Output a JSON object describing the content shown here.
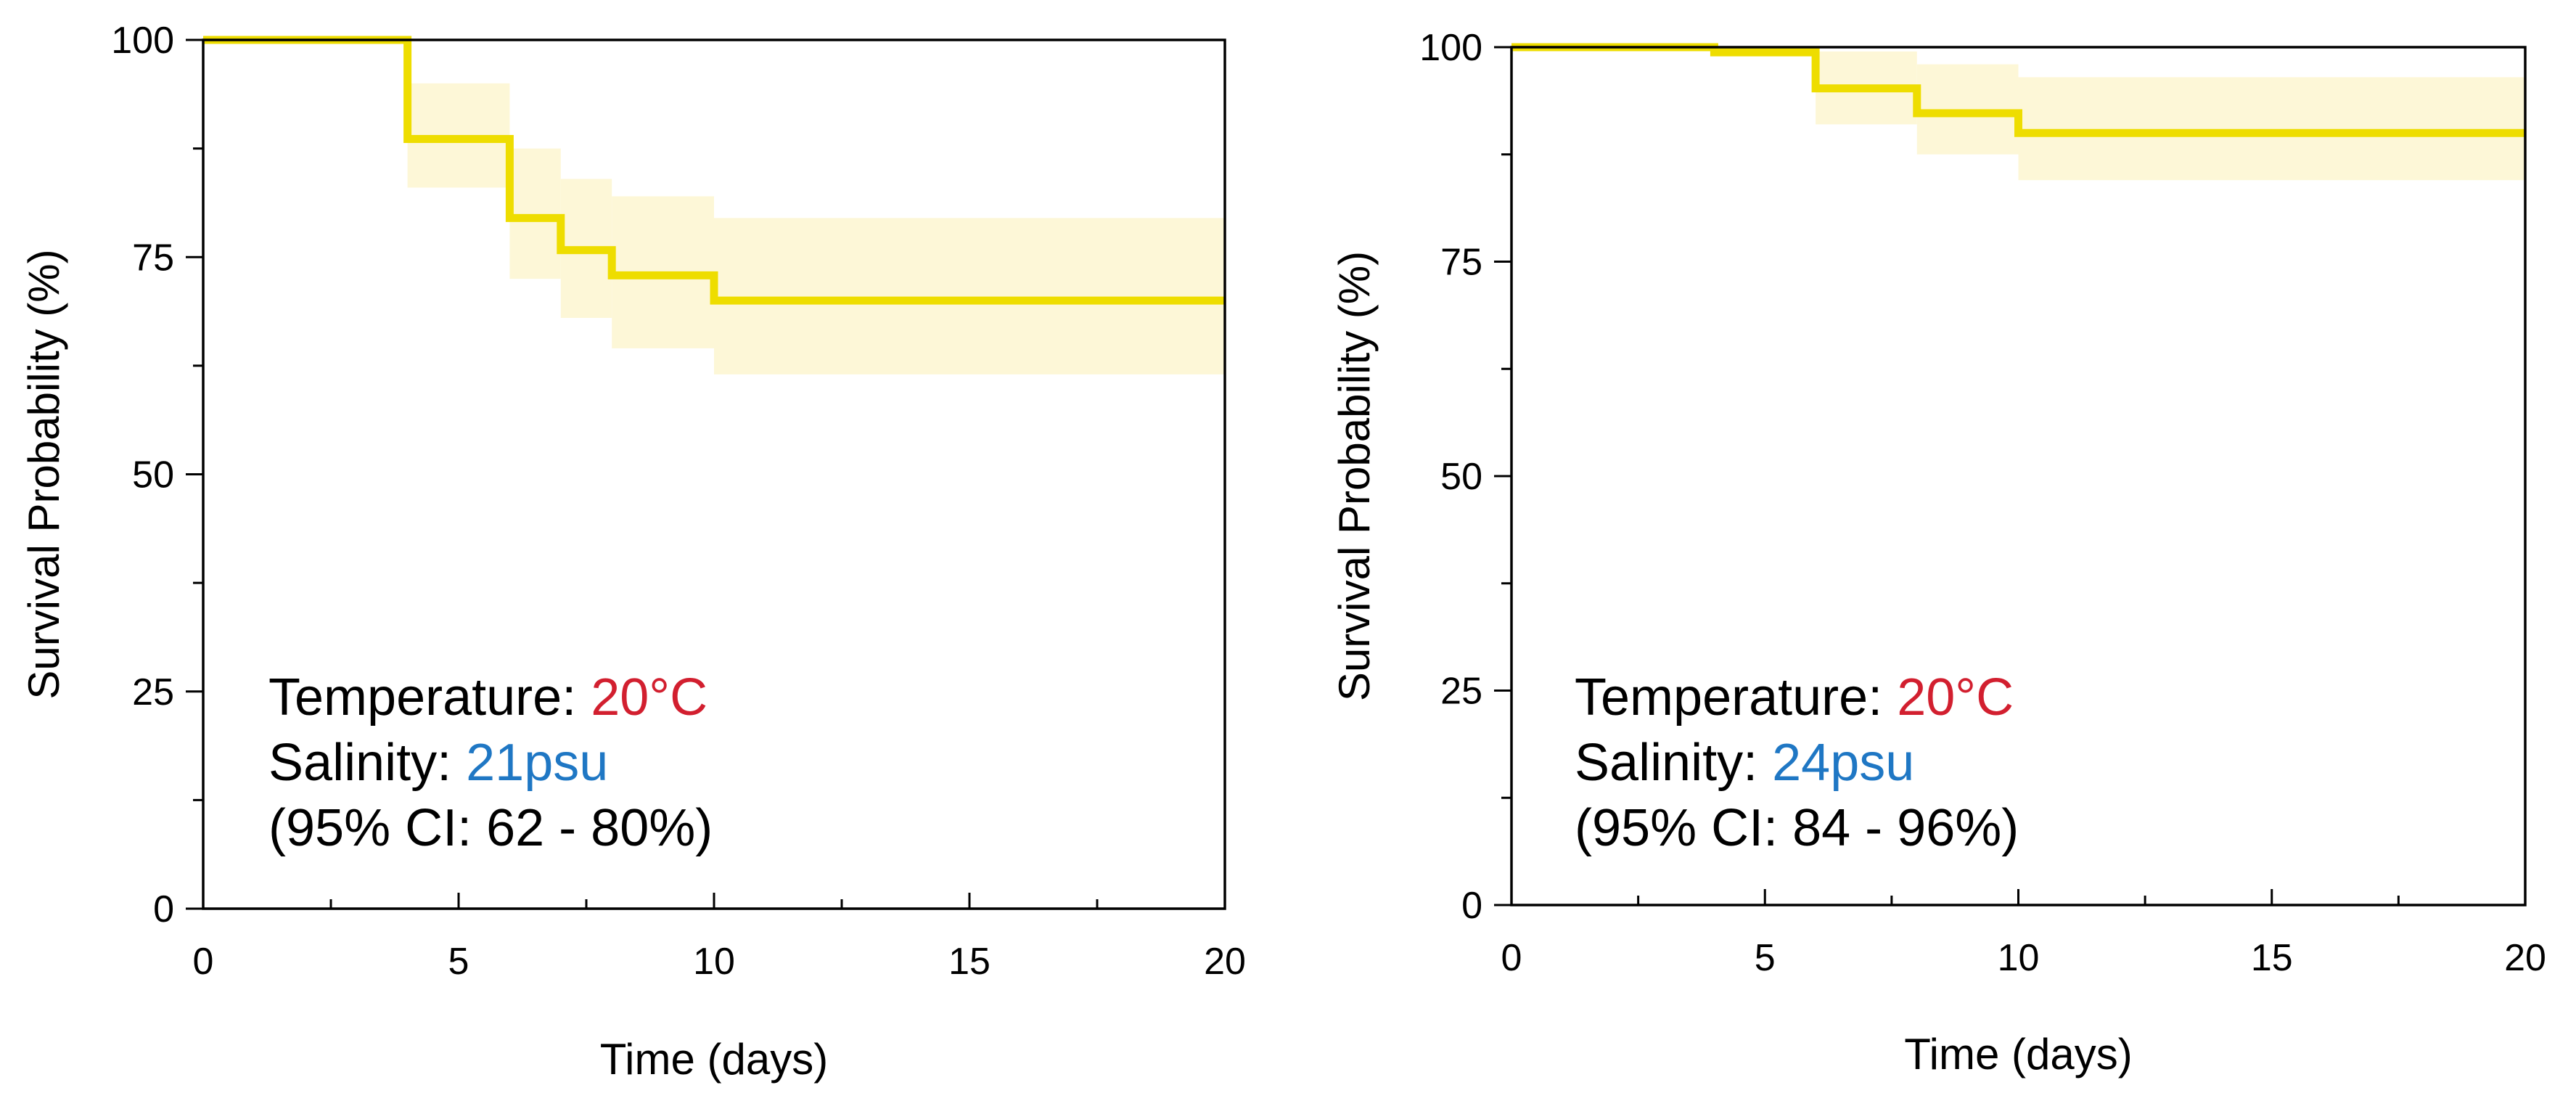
{
  "chart_data": [
    {
      "type": "line",
      "step": true,
      "title": "",
      "xlabel": "Time (days)",
      "ylabel": "Survival Probability (%)",
      "xlim": [
        0,
        20
      ],
      "ylim": [
        0,
        100
      ],
      "xticks": [
        "0",
        "5",
        "10",
        "15",
        "20"
      ],
      "yticks": [
        "0",
        "25",
        "50",
        "75",
        "100"
      ],
      "grid": false,
      "series": [
        {
          "x": [
            0,
            4,
            6,
            7,
            8,
            10,
            20
          ],
          "y": [
            100,
            88.6,
            79.5,
            75.8,
            72.9,
            70.0,
            70.0
          ],
          "ci_lower": [
            100,
            83.0,
            72.5,
            68.0,
            64.5,
            61.5,
            61.5
          ],
          "ci_upper": [
            100,
            95.0,
            87.5,
            84.0,
            82.0,
            79.5,
            79.5
          ],
          "color": "#eedd00",
          "ci_color": "#fdf7d7"
        }
      ],
      "annotation": {
        "temperature_label": "Temperature: ",
        "temperature_value": "20°C",
        "salinity_label": "Salinity: ",
        "salinity_value": "21psu",
        "ci_text": "(95% CI: 62 - 80%)",
        "temperature_color": "#d21f2f",
        "salinity_color": "#1f77c4"
      }
    },
    {
      "type": "line",
      "step": true,
      "title": "",
      "xlabel": "Time (days)",
      "ylabel": "Survival Probability (%)",
      "xlim": [
        0,
        20
      ],
      "ylim": [
        0,
        100
      ],
      "xticks": [
        "0",
        "5",
        "10",
        "15",
        "20"
      ],
      "yticks": [
        "0",
        "25",
        "50",
        "75",
        "100"
      ],
      "grid": false,
      "series": [
        {
          "x": [
            0,
            4,
            6,
            8,
            10,
            20
          ],
          "y": [
            100,
            99.4,
            95.2,
            92.3,
            90.0,
            90.0
          ],
          "ci_lower": [
            100,
            100,
            91.0,
            87.5,
            84.5,
            84.5
          ],
          "ci_upper": [
            100,
            100,
            99.5,
            98.0,
            96.5,
            96.5
          ],
          "color": "#eedd00",
          "ci_color": "#fdf7d7"
        }
      ],
      "annotation": {
        "temperature_label": "Temperature: ",
        "temperature_value": "20°C",
        "salinity_label": "Salinity: ",
        "salinity_value": "24psu",
        "ci_text": "(95% CI: 84 - 96%)",
        "temperature_color": "#d21f2f",
        "salinity_color": "#1f77c4"
      }
    }
  ]
}
